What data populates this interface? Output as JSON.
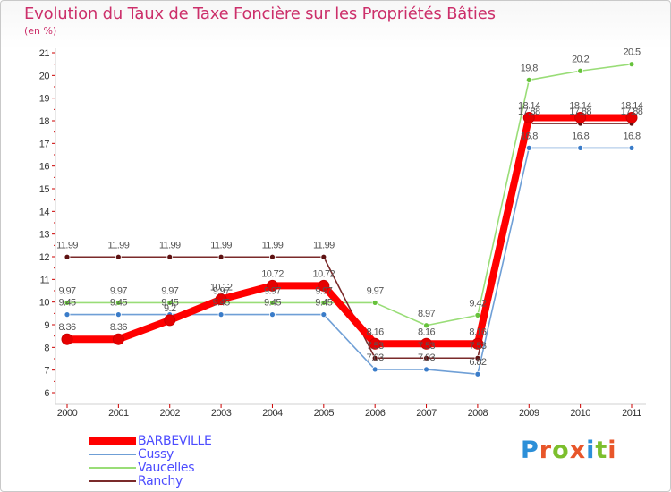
{
  "chart_data": {
    "type": "line",
    "title": "Evolution du Taux de Taxe Foncière sur les Propriétés Bâties",
    "unit_label": "(en %)",
    "xlabel": "",
    "ylabel": "",
    "categories": [
      "2000",
      "2001",
      "2002",
      "2003",
      "2004",
      "2005",
      "2006",
      "2007",
      "2008",
      "2009",
      "2010",
      "2011"
    ],
    "ylim": [
      6,
      21
    ],
    "yticks": [
      "6",
      "7",
      "8",
      "9",
      "10",
      "11",
      "12",
      "13",
      "14",
      "15",
      "16",
      "17",
      "18",
      "19",
      "20",
      "21"
    ],
    "grid": false,
    "series": [
      {
        "name": "BARBEVILLE",
        "color": "#ff0000",
        "thick": true,
        "values": [
          8.36,
          8.36,
          9.2,
          10.12,
          10.72,
          10.72,
          8.16,
          8.16,
          8.16,
          18.14,
          18.14,
          18.14
        ],
        "labels": [
          "8.36",
          "8.36",
          "9.2",
          "10.12",
          "10.72",
          "10.72",
          "8.16",
          "8.16",
          "8.16",
          "18.14",
          "18.14",
          "18.14"
        ]
      },
      {
        "name": "Cussy",
        "color": "#6f9fd6",
        "marker": "#3a7cc9",
        "values": [
          9.45,
          9.45,
          9.45,
          9.45,
          9.45,
          9.45,
          7.03,
          7.03,
          6.82,
          16.8,
          16.8,
          16.8
        ],
        "labels": [
          "9.45",
          "9.45",
          "9.45",
          "9.45",
          "9.45",
          "9.45",
          "7.03",
          "7.03",
          "6.82",
          "16.8",
          "16.8",
          "16.8"
        ]
      },
      {
        "name": "Vaucelles",
        "color": "#99dd77",
        "marker": "#66c23b",
        "values": [
          9.97,
          9.97,
          9.97,
          9.97,
          9.97,
          9.97,
          9.97,
          8.97,
          9.42,
          19.8,
          20.2,
          20.5
        ],
        "labels": [
          "9.97",
          "9.97",
          "9.97",
          "9.97",
          "9.97",
          "9.97",
          "9.97",
          "8.97",
          "9.42",
          "19.8",
          "20.2",
          "20.5"
        ]
      },
      {
        "name": "Ranchy",
        "color": "#7a2a2a",
        "marker": "#5e1212",
        "values": [
          11.99,
          11.99,
          11.99,
          11.99,
          11.99,
          11.99,
          7.53,
          7.53,
          7.53,
          17.88,
          17.88,
          17.88
        ],
        "labels": [
          "11.99",
          "11.99",
          "11.99",
          "11.99",
          "11.99",
          "11.99",
          "7.53",
          "7.53",
          "7.53",
          "17.88",
          "17.88",
          "17.88"
        ]
      }
    ],
    "legend_position": "bottom-left"
  },
  "logo": {
    "text": "Proxiti",
    "letters": [
      "P",
      "r",
      "o",
      "x",
      "i",
      "t",
      "i"
    ],
    "colors": [
      "#2c8fd8",
      "#e8562a",
      "#7cbf2d",
      "#e8562a",
      "#2c8fd8",
      "#7cbf2d",
      "#e8562a"
    ]
  }
}
